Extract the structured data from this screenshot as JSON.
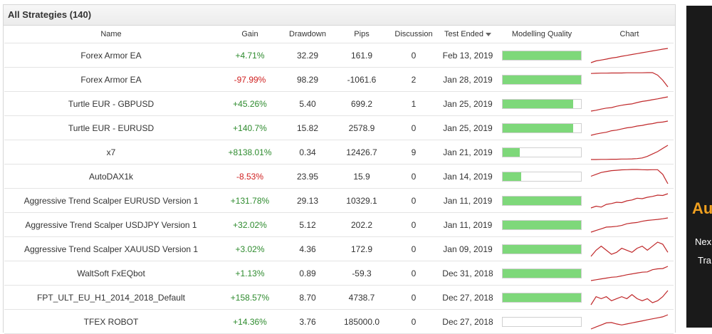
{
  "panel_title": "All Strategies (140)",
  "columns": {
    "name": "Name",
    "gain": "Gain",
    "drawdown": "Drawdown",
    "pips": "Pips",
    "discussion": "Discussion",
    "test_ended": "Test Ended",
    "modelling_quality": "Modelling Quality",
    "chart": "Chart"
  },
  "colors": {
    "positive": "#2e8b2e",
    "negative": "#d02020",
    "quality_fill": "#7ed87a",
    "spark_line": "#c0282a"
  },
  "rows": [
    {
      "name": "Forex Armor EA",
      "gain": "+4.71%",
      "gain_sign": "pos",
      "drawdown": "32.29",
      "pips": "161.9",
      "discussion": "0",
      "test_ended": "Feb 13, 2019",
      "quality": 1.0,
      "spark": [
        2,
        3,
        3.5,
        4,
        4.6,
        5,
        5.6,
        6.1,
        6.6,
        7.1,
        7.6,
        8.1,
        8.6,
        9.1,
        9.6,
        10
      ]
    },
    {
      "name": "Forex Armor EA",
      "gain": "-97.99%",
      "gain_sign": "neg",
      "drawdown": "98.29",
      "pips": "-1061.6",
      "discussion": "2",
      "test_ended": "Jan 28, 2019",
      "quality": 1.0,
      "spark": [
        9,
        9.1,
        9.2,
        9.2,
        9.3,
        9.3,
        9.3,
        9.4,
        9.4,
        9.4,
        9.4,
        9.5,
        9.5,
        8,
        5,
        1
      ]
    },
    {
      "name": "Turtle EUR - GBPUSD",
      "gain": "+45.26%",
      "gain_sign": "pos",
      "drawdown": "5.40",
      "pips": "699.2",
      "discussion": "1",
      "test_ended": "Jan 25, 2019",
      "quality": 0.9,
      "spark": [
        1,
        1.5,
        2.2,
        2.8,
        3.1,
        3.9,
        4.5,
        5,
        5.3,
        6.1,
        6.8,
        7.2,
        7.8,
        8.3,
        8.9,
        9.5
      ]
    },
    {
      "name": "Turtle EUR - EURUSD",
      "gain": "+140.7%",
      "gain_sign": "pos",
      "drawdown": "15.82",
      "pips": "2578.9",
      "discussion": "0",
      "test_ended": "Jan 25, 2019",
      "quality": 0.9,
      "spark": [
        1,
        1.8,
        2.4,
        2.9,
        3.8,
        4.2,
        4.9,
        5.6,
        6,
        6.7,
        7.1,
        7.8,
        8.2,
        8.9,
        9.2,
        9.8
      ]
    },
    {
      "name": "x7",
      "gain": "+8138.01%",
      "gain_sign": "pos",
      "drawdown": "0.34",
      "pips": "12426.7",
      "discussion": "9",
      "test_ended": "Jan 21, 2019",
      "quality": 0.22,
      "spark": [
        1,
        1,
        1.1,
        1.1,
        1.2,
        1.2,
        1.3,
        1.3,
        1.4,
        1.6,
        2,
        3,
        4.5,
        6,
        8,
        10
      ]
    },
    {
      "name": "AutoDAX1k",
      "gain": "-8.53%",
      "gain_sign": "neg",
      "drawdown": "23.95",
      "pips": "15.9",
      "discussion": "0",
      "test_ended": "Jan 14, 2019",
      "quality": 0.24,
      "spark": [
        5,
        6,
        7,
        7.5,
        8,
        8.2,
        8.4,
        8.5,
        8.6,
        8.6,
        8.5,
        8.4,
        8.5,
        8.5,
        6,
        1
      ]
    },
    {
      "name": "Aggressive Trend Scalper EURUSD Version 1",
      "gain": "+131.78%",
      "gain_sign": "pos",
      "drawdown": "29.13",
      "pips": "10329.1",
      "discussion": "0",
      "test_ended": "Jan 11, 2019",
      "quality": 1.0,
      "spark": [
        1,
        2,
        1.5,
        3,
        3.5,
        4.2,
        4,
        5,
        5.5,
        6.5,
        6.2,
        7,
        7.5,
        8.2,
        8,
        9
      ]
    },
    {
      "name": "Aggressive Trend Scalper USDJPY Version 1",
      "gain": "+32.02%",
      "gain_sign": "pos",
      "drawdown": "5.12",
      "pips": "202.2",
      "discussion": "0",
      "test_ended": "Jan 11, 2019",
      "quality": 1.0,
      "spark": [
        1,
        2,
        3,
        4,
        4.2,
        4.5,
        5,
        6,
        6.5,
        6.8,
        7.5,
        8,
        8.3,
        8.6,
        9,
        9.5
      ]
    },
    {
      "name": "Aggressive Trend Scalper XAUUSD Version 1",
      "gain": "+3.02%",
      "gain_sign": "pos",
      "drawdown": "4.36",
      "pips": "172.9",
      "discussion": "0",
      "test_ended": "Jan 09, 2019",
      "quality": 1.0,
      "spark": [
        2,
        5,
        7,
        5,
        3,
        4,
        6,
        5,
        4,
        6,
        7,
        5,
        7,
        9,
        8,
        4
      ]
    },
    {
      "name": "WaltSoft FxEQbot",
      "gain": "+1.13%",
      "gain_sign": "pos",
      "drawdown": "0.89",
      "pips": "-59.3",
      "discussion": "0",
      "test_ended": "Dec 31, 2018",
      "quality": 1.0,
      "spark": [
        1,
        1.5,
        2,
        2.5,
        3,
        3.2,
        3.8,
        4.5,
        5,
        5.5,
        6,
        6.2,
        7.5,
        8,
        8.2,
        9.5
      ]
    },
    {
      "name": "FPT_ULT_EU_H1_2014_2018_Default",
      "gain": "+158.57%",
      "gain_sign": "pos",
      "drawdown": "8.70",
      "pips": "4738.7",
      "discussion": "0",
      "test_ended": "Dec 27, 2018",
      "quality": 1.0,
      "spark": [
        2,
        6,
        5,
        6,
        4,
        5,
        6,
        5,
        7,
        5,
        4,
        5,
        3,
        4,
        6,
        9
      ]
    },
    {
      "name": "TFEX ROBOT",
      "gain": "+14.36%",
      "gain_sign": "pos",
      "drawdown": "3.76",
      "pips": "185000.0",
      "discussion": "0",
      "test_ended": "Dec 27, 2018",
      "quality": 0.0,
      "spark": [
        3,
        4,
        5,
        6,
        6.2,
        5.5,
        5,
        5.5,
        6,
        6.5,
        7,
        7.5,
        8,
        8.5,
        9,
        10
      ]
    }
  ],
  "side_panel": {
    "title": "Au",
    "line1": "Nex",
    "line2": "Tra"
  }
}
